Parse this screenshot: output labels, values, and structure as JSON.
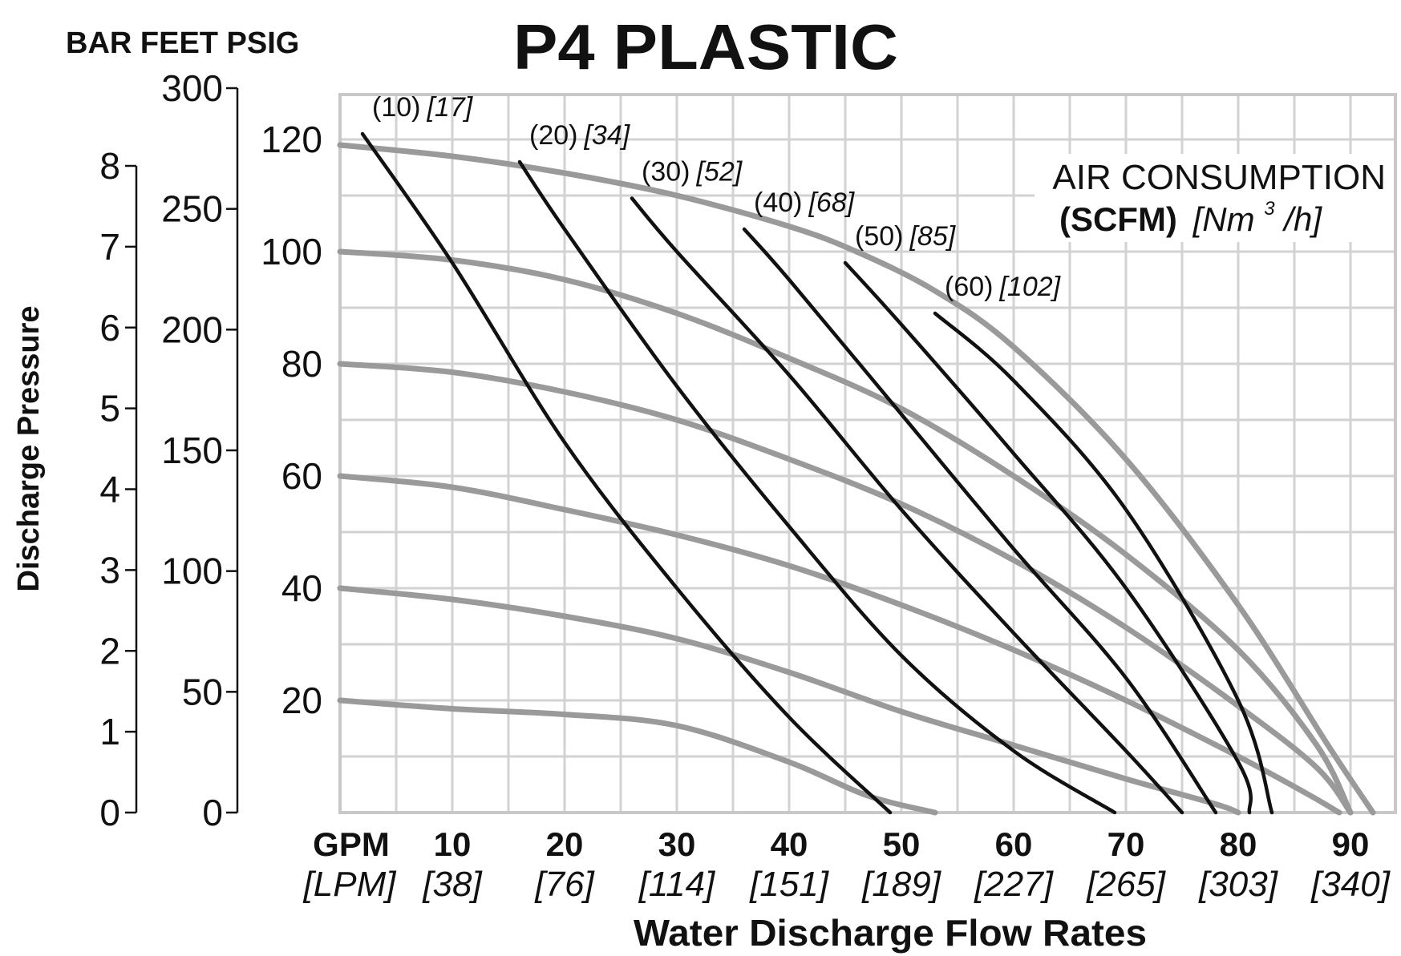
{
  "chart_data": {
    "type": "line",
    "title": "P4 PLASTIC",
    "units_header": "BAR FEET PSIG",
    "ylabel": "Discharge Pressure",
    "xlabel": "Water Discharge Flow Rates",
    "x_unit_primary": "GPM",
    "x_unit_secondary": "[LPM]",
    "xlim": [
      0,
      94
    ],
    "ylim": [
      0,
      128
    ],
    "grid": true,
    "x_ticks": [
      {
        "gpm": "10",
        "lpm": "[38]",
        "value": 10
      },
      {
        "gpm": "20",
        "lpm": "[76]",
        "value": 20
      },
      {
        "gpm": "30",
        "lpm": "[114]",
        "value": 30
      },
      {
        "gpm": "40",
        "lpm": "[151]",
        "value": 40
      },
      {
        "gpm": "50",
        "lpm": "[189]",
        "value": 50
      },
      {
        "gpm": "60",
        "lpm": "[227]",
        "value": 60
      },
      {
        "gpm": "70",
        "lpm": "[265]",
        "value": 70
      },
      {
        "gpm": "80",
        "lpm": "[303]",
        "value": 80
      },
      {
        "gpm": "90",
        "lpm": "[340]",
        "value": 90
      }
    ],
    "psig_ticks": [
      "20",
      "40",
      "60",
      "80",
      "100",
      "120"
    ],
    "feet_ticks": [
      "0",
      "50",
      "100",
      "150",
      "200",
      "250",
      "300"
    ],
    "bar_ticks": [
      "0",
      "1",
      "2",
      "3",
      "4",
      "5",
      "6",
      "7",
      "8"
    ],
    "legend": {
      "line1": "AIR CONSUMPTION",
      "line2_bold": "(SCFM)",
      "line2_italic_prefix": "[Nm",
      "line2_sup": "3",
      "line2_italic_suffix": "/h]",
      "position": "top-right"
    },
    "performance_curves": [
      {
        "name": "inlet-air-20",
        "points": [
          [
            0,
            20
          ],
          [
            10,
            18.5
          ],
          [
            20,
            17.5
          ],
          [
            30,
            15.5
          ],
          [
            40,
            9
          ],
          [
            47,
            3
          ],
          [
            53,
            0
          ]
        ]
      },
      {
        "name": "inlet-air-40",
        "points": [
          [
            0,
            40
          ],
          [
            10,
            38
          ],
          [
            20,
            35
          ],
          [
            30,
            31
          ],
          [
            40,
            25
          ],
          [
            50,
            18
          ],
          [
            60,
            12
          ],
          [
            70,
            6
          ],
          [
            78,
            1.5
          ],
          [
            80,
            0
          ]
        ]
      },
      {
        "name": "inlet-air-60",
        "points": [
          [
            0,
            60
          ],
          [
            10,
            58
          ],
          [
            20,
            54
          ],
          [
            30,
            49.5
          ],
          [
            40,
            44
          ],
          [
            50,
            37
          ],
          [
            60,
            29
          ],
          [
            70,
            20
          ],
          [
            80,
            10
          ],
          [
            86,
            3.5
          ],
          [
            89,
            0
          ]
        ]
      },
      {
        "name": "inlet-air-80",
        "points": [
          [
            0,
            80
          ],
          [
            10,
            78.5
          ],
          [
            20,
            75
          ],
          [
            30,
            70
          ],
          [
            40,
            63
          ],
          [
            50,
            55
          ],
          [
            60,
            45
          ],
          [
            70,
            33
          ],
          [
            80,
            19
          ],
          [
            87,
            8
          ],
          [
            90,
            0
          ]
        ]
      },
      {
        "name": "inlet-air-100",
        "points": [
          [
            0,
            100
          ],
          [
            10,
            98.5
          ],
          [
            20,
            95
          ],
          [
            30,
            89
          ],
          [
            40,
            81
          ],
          [
            50,
            72
          ],
          [
            60,
            60
          ],
          [
            70,
            46
          ],
          [
            80,
            29
          ],
          [
            87,
            12
          ],
          [
            90,
            0
          ]
        ]
      },
      {
        "name": "inlet-air-120",
        "points": [
          [
            0,
            119
          ],
          [
            10,
            117
          ],
          [
            20,
            114
          ],
          [
            30,
            110
          ],
          [
            40,
            104.5
          ],
          [
            46,
            100
          ],
          [
            53,
            93
          ],
          [
            60,
            83
          ],
          [
            70,
            63
          ],
          [
            80,
            37
          ],
          [
            88,
            12
          ],
          [
            92,
            0
          ]
        ]
      }
    ],
    "air_consumption_curves": [
      {
        "label": "(10)",
        "label_metric": "[17]",
        "points": [
          [
            2,
            121
          ],
          [
            10,
            98
          ],
          [
            20,
            66
          ],
          [
            30,
            40
          ],
          [
            40,
            17
          ],
          [
            49,
            0
          ]
        ]
      },
      {
        "label": "(20)",
        "label_metric": "[34]",
        "points": [
          [
            16,
            116
          ],
          [
            20,
            104
          ],
          [
            30,
            76
          ],
          [
            40,
            51
          ],
          [
            50,
            28
          ],
          [
            60,
            11
          ],
          [
            69,
            0
          ]
        ]
      },
      {
        "label": "(30)",
        "label_metric": "[52]",
        "points": [
          [
            26,
            109.5
          ],
          [
            30,
            100
          ],
          [
            40,
            78
          ],
          [
            50,
            54
          ],
          [
            60,
            32
          ],
          [
            70,
            11
          ],
          [
            75,
            0
          ]
        ]
      },
      {
        "label": "(40)",
        "label_metric": "[68]",
        "points": [
          [
            36,
            104
          ],
          [
            40,
            95
          ],
          [
            50,
            71
          ],
          [
            60,
            47
          ],
          [
            70,
            24
          ],
          [
            78,
            0
          ]
        ]
      },
      {
        "label": "(50)",
        "label_metric": "[85]",
        "points": [
          [
            45,
            98
          ],
          [
            50,
            87
          ],
          [
            60,
            64
          ],
          [
            70,
            40
          ],
          [
            80,
            9
          ],
          [
            81,
            0
          ]
        ]
      },
      {
        "label": "(60)",
        "label_metric": "[102]",
        "points": [
          [
            53,
            89
          ],
          [
            60,
            77
          ],
          [
            70,
            54
          ],
          [
            80,
            20
          ],
          [
            83,
            0
          ]
        ]
      }
    ]
  },
  "colors": {
    "grid": "#d2d2d2",
    "frame": "#c8c8c8",
    "performance_curve": "#9a9a9a",
    "air_curve": "#111111",
    "text": "#111111"
  }
}
